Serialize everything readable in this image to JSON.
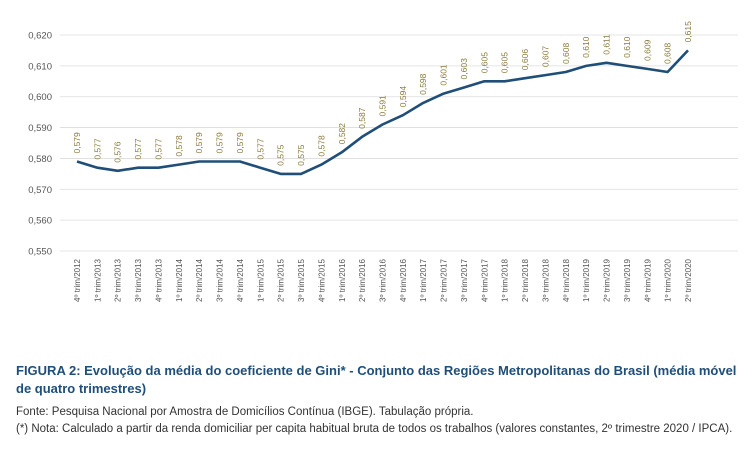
{
  "figure": {
    "title": "FIGURA 2: Evolução da média do coeficiente de Gini* - Conjunto das Regiões Metropolitanas do Brasil (média móvel de quatro trimestres)",
    "source": "Fonte: Pesquisa Nacional por Amostra de Domicílios Contínua (IBGE). Tabulação própria.",
    "note": "(*) Nota: Calculado a partir da renda domiciliar per capita habitual bruta de todos os trabalhos (valores constantes, 2º trimestre 2020 / IPCA)."
  },
  "chart_data": {
    "type": "line",
    "title": "",
    "xlabel": "",
    "ylabel": "",
    "ylim": [
      0.55,
      0.62
    ],
    "yticks": [
      "0,550",
      "0,560",
      "0,570",
      "0,580",
      "0,590",
      "0,600",
      "0,610",
      "0,620"
    ],
    "grid": true,
    "line_color": "#1f4e79",
    "label_color": "#8a7a3e",
    "categories": [
      "4º trim/2012",
      "1º trim/2013",
      "2º trim/2013",
      "3º trim/2013",
      "4º trim/2013",
      "1º trim/2014",
      "2º trim/2014",
      "3º trim/2014",
      "4º trim/2014",
      "1º trim/2015",
      "2º trim/2015",
      "3º trim/2015",
      "4º trim/2015",
      "1º trim/2016",
      "2º trim/2016",
      "3º trim/2016",
      "4º trim/2016",
      "1º trim/2017",
      "2º trim/2017",
      "3º trim/2017",
      "4º trim/2017",
      "1º trim/2018",
      "2º trim/2018",
      "3º trim/2018",
      "4º trim/2018",
      "1º trim/2019",
      "2º trim/2019",
      "3º trim/2019",
      "4º trim/2019",
      "1º trim/2020",
      "2º trim/2020"
    ],
    "values": [
      0.579,
      0.577,
      0.576,
      0.577,
      0.577,
      0.578,
      0.579,
      0.579,
      0.579,
      0.577,
      0.575,
      0.575,
      0.578,
      0.582,
      0.587,
      0.591,
      0.594,
      0.598,
      0.601,
      0.603,
      0.605,
      0.605,
      0.606,
      0.607,
      0.608,
      0.61,
      0.611,
      0.61,
      0.609,
      0.608,
      0.615
    ],
    "labels": [
      "0,579",
      "0,577",
      "0,576",
      "0,577",
      "0,577",
      "0,578",
      "0,579",
      "0,579",
      "0,579",
      "0,577",
      "0,575",
      "0,575",
      "0,578",
      "0,582",
      "0,587",
      "0,591",
      "0,594",
      "0,598",
      "0,601",
      "0,603",
      "0,605",
      "0,605",
      "0,606",
      "0,607",
      "0,608",
      "0,610",
      "0,611",
      "0,610",
      "0,609",
      "0,608",
      "0,615"
    ]
  }
}
